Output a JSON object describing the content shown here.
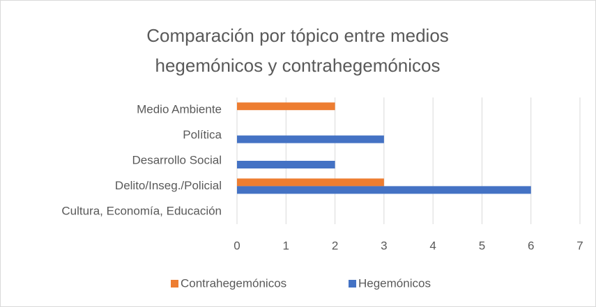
{
  "chart_data": {
    "type": "barh",
    "title": "Comparación por tópico entre medios hegemónicos y contrahegemónicos",
    "categories": [
      "Medio Ambiente",
      "Política",
      "Desarrollo Social",
      "Delito/Inseg./Policial",
      "Cultura, Economía, Educación"
    ],
    "series": [
      {
        "name": "Contrahegemónicos",
        "color": "#ed7d31",
        "values": [
          2,
          0,
          0,
          3,
          0
        ]
      },
      {
        "name": "Hegemónicos",
        "color": "#4472c4",
        "values": [
          0,
          3,
          2,
          6,
          0
        ]
      }
    ],
    "xlim": [
      0,
      7
    ],
    "xticks": [
      0,
      1,
      2,
      3,
      4,
      5,
      6,
      7
    ],
    "grid": true,
    "legend": "bottom"
  }
}
